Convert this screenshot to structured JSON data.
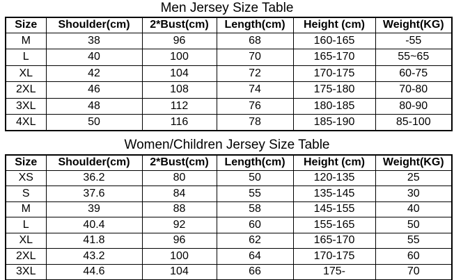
{
  "tables": [
    {
      "title": "Men Jersey Size Table",
      "header": [
        "Size",
        "Shoulder(cm)",
        "2*Bust(cm)",
        "Length(cm)",
        "Height (cm)",
        "Weight(KG)"
      ],
      "rows": [
        [
          "M",
          "38",
          "96",
          "68",
          "160-165",
          "-55"
        ],
        [
          "L",
          "40",
          "100",
          "70",
          "165-170",
          "55~65"
        ],
        [
          "XL",
          "42",
          "104",
          "72",
          "170-175",
          "60-75"
        ],
        [
          "2XL",
          "46",
          "108",
          "74",
          "175-180",
          "70-80"
        ],
        [
          "3XL",
          "48",
          "112",
          "76",
          "180-185",
          "80-90"
        ],
        [
          "4XL",
          "50",
          "116",
          "78",
          "185-190",
          "85-100"
        ]
      ]
    },
    {
      "title": "Women/Children Jersey Size Table",
      "header": [
        "Size",
        "Shoulder(cm)",
        "2*Bust(cm)",
        "Length(cm)",
        "Height (cm)",
        "Weight(KG)"
      ],
      "rows": [
        [
          "XS",
          "36.2",
          "80",
          "50",
          "120-135",
          "25"
        ],
        [
          "S",
          "37.6",
          "84",
          "55",
          "135-145",
          "30"
        ],
        [
          "M",
          "39",
          "88",
          "58",
          "145-155",
          "40"
        ],
        [
          "L",
          "40.4",
          "92",
          "60",
          "155-165",
          "50"
        ],
        [
          "XL",
          "41.8",
          "96",
          "62",
          "165-170",
          "55"
        ],
        [
          "2XL",
          "43.2",
          "100",
          "64",
          "170-175",
          "60"
        ],
        [
          "3XL",
          "44.6",
          "104",
          "66",
          "175-",
          "70"
        ]
      ]
    }
  ]
}
